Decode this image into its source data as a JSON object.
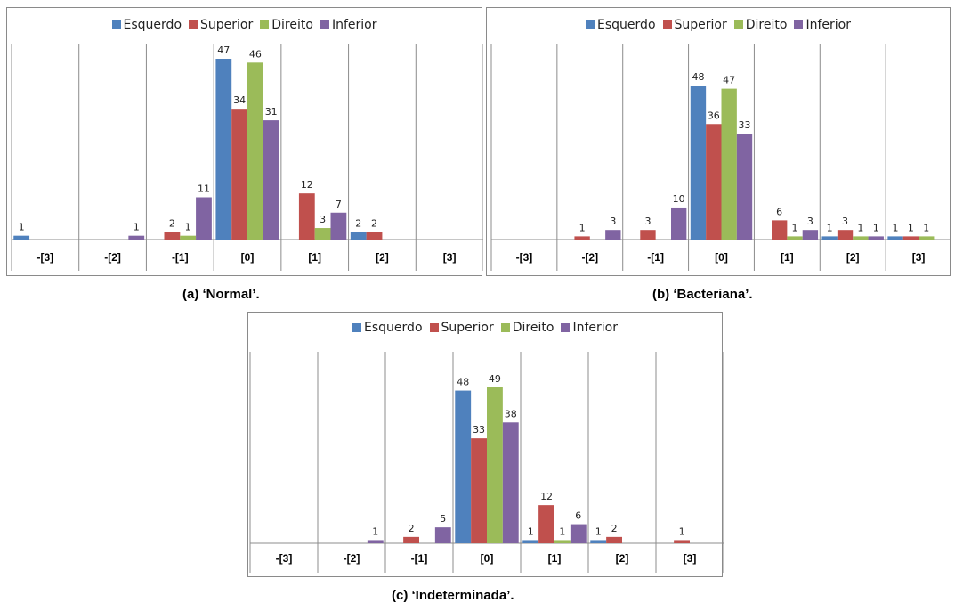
{
  "colors": {
    "Esquerdo": "#4f81bd",
    "Superior": "#c0504d",
    "Direito": "#9bbb59",
    "Inferior": "#8064a2"
  },
  "captions": {
    "a": "(a) ‘Normal’.",
    "b": "(b) ‘Bacteriana’.",
    "c": "(c) ‘Indeterminada’."
  },
  "legend": [
    "Esquerdo",
    "Superior",
    "Direito",
    "Inferior"
  ],
  "chart_data": [
    {
      "type": "bar",
      "title": "",
      "categories": [
        "-[3]",
        "-[2]",
        "-[1]",
        "[0]",
        "[1]",
        "[2]",
        "[3]"
      ],
      "ylim": [
        0,
        47
      ],
      "legend_position": "top",
      "series": [
        {
          "name": "Esquerdo",
          "values": [
            1,
            0,
            0,
            47,
            0,
            2,
            0
          ]
        },
        {
          "name": "Superior",
          "values": [
            0,
            0,
            2,
            34,
            12,
            2,
            0
          ]
        },
        {
          "name": "Direito",
          "values": [
            0,
            0,
            1,
            46,
            3,
            0,
            0
          ]
        },
        {
          "name": "Inferior",
          "values": [
            0,
            1,
            11,
            31,
            7,
            0,
            0
          ]
        }
      ]
    },
    {
      "type": "bar",
      "title": "",
      "categories": [
        "-[3]",
        "-[2]",
        "-[1]",
        "[0]",
        "[1]",
        "[2]",
        "[3]"
      ],
      "ylim": [
        0,
        48
      ],
      "legend_position": "top",
      "series": [
        {
          "name": "Esquerdo",
          "values": [
            0,
            0,
            0,
            48,
            0,
            1,
            1
          ]
        },
        {
          "name": "Superior",
          "values": [
            0,
            1,
            3,
            36,
            6,
            3,
            1
          ]
        },
        {
          "name": "Direito",
          "values": [
            0,
            0,
            0,
            47,
            1,
            1,
            1
          ]
        },
        {
          "name": "Inferior",
          "values": [
            0,
            3,
            10,
            33,
            3,
            1,
            0
          ]
        }
      ]
    },
    {
      "type": "bar",
      "title": "",
      "categories": [
        "-[3]",
        "-[2]",
        "-[1]",
        "[0]",
        "[1]",
        "[2]",
        "[3]"
      ],
      "ylim": [
        0,
        49
      ],
      "legend_position": "top",
      "series": [
        {
          "name": "Esquerdo",
          "values": [
            0,
            0,
            0,
            48,
            1,
            1,
            0
          ]
        },
        {
          "name": "Superior",
          "values": [
            0,
            0,
            2,
            33,
            12,
            2,
            1
          ]
        },
        {
          "name": "Direito",
          "values": [
            0,
            0,
            0,
            49,
            1,
            0,
            0
          ]
        },
        {
          "name": "Inferior",
          "values": [
            0,
            1,
            5,
            38,
            6,
            0,
            0
          ]
        }
      ]
    }
  ]
}
